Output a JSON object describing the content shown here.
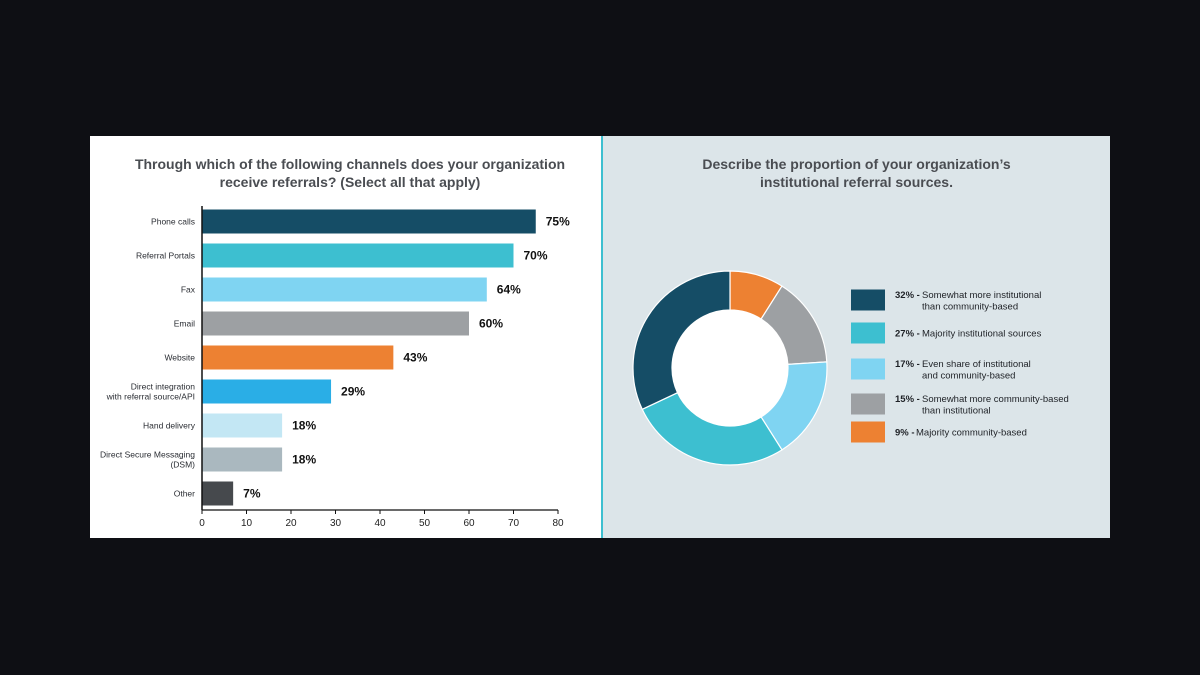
{
  "chart_data": [
    {
      "type": "bar",
      "orientation": "horizontal",
      "title": "Through which of the following channels does your organization receive referrals? (Select all that apply)",
      "categories": [
        [
          "Phone calls"
        ],
        [
          "Referral Portals"
        ],
        [
          "Fax"
        ],
        [
          "Email"
        ],
        [
          "Website"
        ],
        [
          "Direct integration",
          "with referral source/API"
        ],
        [
          "Hand delivery"
        ],
        [
          "Direct Secure Messaging",
          "(DSM)"
        ],
        [
          "Other"
        ]
      ],
      "values": [
        75,
        70,
        64,
        60,
        43,
        29,
        18,
        18,
        7
      ],
      "value_labels": [
        "75%",
        "70%",
        "64%",
        "60%",
        "43%",
        "29%",
        "18%",
        "18%",
        "7%"
      ],
      "colors": [
        "#154d66",
        "#3dbfd0",
        "#7fd4f2",
        "#9da0a3",
        "#ed8132",
        "#2aaee6",
        "#c3e7f4",
        "#aab8bf",
        "#46494d"
      ],
      "xlim": [
        0,
        80
      ],
      "xticks": [
        0,
        10,
        20,
        30,
        40,
        50,
        60,
        70,
        80
      ],
      "grid": false
    },
    {
      "type": "pie",
      "donut": true,
      "title": "Describe the proportion of your organization’s institutional referral sources.",
      "legend_position": "right",
      "slices": [
        {
          "pct_label": "32% -",
          "label": [
            "Somewhat more institutional",
            "than community-based"
          ],
          "value": 32,
          "color": "#154d66"
        },
        {
          "pct_label": "27% -",
          "label": [
            "Majority institutional sources"
          ],
          "value": 27,
          "color": "#3dbfd0"
        },
        {
          "pct_label": "17% -",
          "label": [
            "Even share of institutional",
            "and community-based"
          ],
          "value": 17,
          "color": "#7fd4f2"
        },
        {
          "pct_label": "15% -",
          "label": [
            "Somewhat more community-based",
            "than institutional"
          ],
          "value": 15,
          "color": "#9da0a3"
        },
        {
          "pct_label": "9% -",
          "label": [
            "Majority community-based"
          ],
          "value": 9,
          "color": "#ed8132"
        }
      ]
    }
  ]
}
